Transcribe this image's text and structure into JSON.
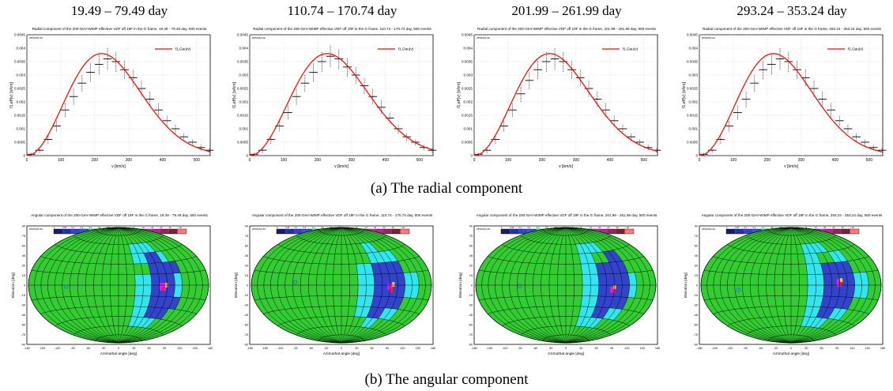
{
  "figure": {
    "radial_caption": "(a) The radial component",
    "angular_caption": "(b) The angular component"
  },
  "colors": {
    "histogram": "#000000",
    "theory_curve": "#ee1111",
    "sphere_green": "#33cc33",
    "cell_cyan": "#33e6ee",
    "cell_blue": "#3344cc",
    "cell_magenta": "#dd22dd",
    "cell_red": "#ee2222",
    "cell_yellow": "#ffcc00"
  },
  "chart_data": [
    {
      "type": "bar",
      "heading": "19.49 – 79.49 day",
      "title": "Radial component of the 200-GeV-WIMP effective VDF off 19F in the G frame, 19.49 - 79.49 day, 500 events",
      "corner_tag": "zeroxxx.zz",
      "legend": "f1,Gau(v)",
      "xlabel": "v [km/s]",
      "ylabel": "f1,eff(v) [s/km]",
      "xlim": [
        0,
        540
      ],
      "ylim": [
        0,
        0.0045
      ],
      "xticks": [
        0,
        100,
        200,
        300,
        400,
        500
      ],
      "yticks": [
        "0",
        "0.0005",
        "0.001",
        "0.0015",
        "0.002",
        "0.0025",
        "0.003",
        "0.0035",
        "0.004",
        "0.0045"
      ],
      "bin_width": 25,
      "values": [
        5e-05,
        0.0002,
        0.0006,
        0.0011,
        0.0017,
        0.0022,
        0.0027,
        0.0031,
        0.0034,
        0.0036,
        0.0035,
        0.0032,
        0.0029,
        0.0025,
        0.0021,
        0.0017,
        0.0013,
        0.001,
        0.0007,
        0.0005,
        0.0003,
        0.0002
      ],
      "errors": [
        5e-05,
        0.0001,
        0.00015,
        0.0002,
        0.00025,
        0.0003,
        0.00032,
        0.00035,
        0.00038,
        0.0004,
        0.00038,
        0.00035,
        0.00032,
        0.0003,
        0.00028,
        0.00025,
        0.0002,
        0.00018,
        0.00015,
        0.00012,
        0.0001,
        8e-05
      ],
      "curve": {
        "name": "f1,Gau(v)",
        "peak_v": 220,
        "peak_value": 0.0038
      }
    },
    {
      "type": "bar",
      "heading": "110.74 – 170.74 day",
      "title": "Radial component of the 200-GeV-WIMP effective VDF off 19F in the G frame, 110.74 - 170.74 day, 500 events",
      "corner_tag": "zeroxxx.zz",
      "legend": "f1,Gau(v)",
      "xlabel": "v [km/s]",
      "ylabel": "f1,eff(v) [s/km]",
      "xlim": [
        0,
        540
      ],
      "ylim": [
        0,
        0.0045
      ],
      "xticks": [
        0,
        100,
        200,
        300,
        400,
        500
      ],
      "yticks": [
        "0",
        "0.0005",
        "0.001",
        "0.0015",
        "0.002",
        "0.0025",
        "0.003",
        "0.0035",
        "0.004",
        "0.0045"
      ],
      "bin_width": 25,
      "values": [
        5e-05,
        0.0002,
        0.0006,
        0.0011,
        0.0016,
        0.0022,
        0.0027,
        0.0031,
        0.0035,
        0.0037,
        0.0036,
        0.0033,
        0.003,
        0.0026,
        0.0022,
        0.0018,
        0.0014,
        0.001,
        0.0007,
        0.0005,
        0.0003,
        0.0002
      ],
      "errors": [
        5e-05,
        0.0001,
        0.00015,
        0.0002,
        0.00025,
        0.0003,
        0.00032,
        0.00035,
        0.00038,
        0.0004,
        0.00038,
        0.00035,
        0.00032,
        0.0003,
        0.00028,
        0.00025,
        0.0002,
        0.00018,
        0.00015,
        0.00012,
        0.0001,
        8e-05
      ],
      "curve": {
        "name": "f1,Gau(v)",
        "peak_v": 228,
        "peak_value": 0.0038
      }
    },
    {
      "type": "bar",
      "heading": "201.99 – 261.99 day",
      "title": "Radial component of the 200-GeV-WIMP effective VDF off 19F in the G frame, 201.99 - 261.99 day, 500 events",
      "corner_tag": "zeroxxx.zz",
      "legend": "f1,Gau(v)",
      "xlabel": "v [km/s]",
      "ylabel": "f1,eff(v) [s/km]",
      "xlim": [
        0,
        540
      ],
      "ylim": [
        0,
        0.0045
      ],
      "xticks": [
        0,
        100,
        200,
        300,
        400,
        500
      ],
      "yticks": [
        "0",
        "0.0005",
        "0.001",
        "0.0015",
        "0.002",
        "0.0025",
        "0.003",
        "0.0035",
        "0.004",
        "0.0045"
      ],
      "bin_width": 25,
      "values": [
        5e-05,
        0.0002,
        0.0006,
        0.0011,
        0.0017,
        0.0023,
        0.0028,
        0.0032,
        0.0035,
        0.0036,
        0.0035,
        0.0032,
        0.0029,
        0.0025,
        0.0021,
        0.0017,
        0.0013,
        0.001,
        0.0007,
        0.0005,
        0.0003,
        0.0002
      ],
      "errors": [
        5e-05,
        0.0001,
        0.00015,
        0.0002,
        0.00025,
        0.0003,
        0.00032,
        0.00035,
        0.00038,
        0.0004,
        0.00038,
        0.00035,
        0.00032,
        0.0003,
        0.00028,
        0.00025,
        0.0002,
        0.00018,
        0.00015,
        0.00012,
        0.0001,
        8e-05
      ],
      "curve": {
        "name": "f1,Gau(v)",
        "peak_v": 222,
        "peak_value": 0.0038
      }
    },
    {
      "type": "bar",
      "heading": "293.24 – 353.24 day",
      "title": "Radial component of the 200-GeV-WIMP effective VDF off 19F in the G frame, 293.24 - 353.24 day, 500 events",
      "corner_tag": "zeroxxx.zz",
      "legend": "f1,Gau(v)",
      "xlabel": "v [km/s]",
      "ylabel": "f1,eff(v) [s/km]",
      "xlim": [
        0,
        540
      ],
      "ylim": [
        0,
        0.0045
      ],
      "xticks": [
        0,
        100,
        200,
        300,
        400,
        500
      ],
      "yticks": [
        "0",
        "0.0005",
        "0.001",
        "0.0015",
        "0.002",
        "0.0025",
        "0.003",
        "0.0035",
        "0.004",
        "0.0045"
      ],
      "bin_width": 25,
      "values": [
        5e-05,
        0.0002,
        0.0006,
        0.0011,
        0.0016,
        0.0021,
        0.0027,
        0.0032,
        0.0034,
        0.0036,
        0.0035,
        0.0032,
        0.0029,
        0.0025,
        0.0021,
        0.0017,
        0.0013,
        0.001,
        0.0007,
        0.0005,
        0.0003,
        0.0002
      ],
      "errors": [
        5e-05,
        0.0001,
        0.00015,
        0.0002,
        0.00025,
        0.0003,
        0.00032,
        0.00035,
        0.00038,
        0.0004,
        0.00038,
        0.00035,
        0.00032,
        0.0003,
        0.00028,
        0.00025,
        0.0002,
        0.00018,
        0.00015,
        0.00012,
        0.0001,
        8e-05
      ],
      "curve": {
        "name": "f1,Gau(v)",
        "peak_v": 218,
        "peak_value": 0.0038
      }
    },
    {
      "type": "heatmap",
      "title": "Angular component of the 200-GeV-WIMP effective VDF off 19F in the G frame, 19.49 - 79.49 day, 500 events",
      "corner_tag": "zeroxxx.zz",
      "projection": "hammer",
      "xlabel": "Azimuthal angle [deg]",
      "ylabel": "Elevation [deg]",
      "xlim": [
        -180,
        180
      ],
      "ylim": [
        -90,
        90
      ],
      "xticks": [
        -180,
        -150,
        -120,
        -90,
        -60,
        -30,
        0,
        30,
        60,
        90,
        120,
        150,
        180
      ],
      "yticks": [
        -90,
        -75,
        -60,
        -45,
        -30,
        -15,
        0,
        15,
        30,
        45,
        60,
        75,
        90
      ],
      "colorbar_labels": [
        "0",
        "0.05",
        "0.1",
        "0.2",
        "0.4",
        "0.6",
        "0.8",
        "1",
        "2",
        "5",
        "10",
        "15",
        "20",
        "30",
        "> 40"
      ],
      "colorbar_colors": [
        "#1a1a70",
        "#2233aa",
        "#3344cc",
        "#3355dd",
        "#33e6ee",
        "#77f0f0",
        "#bbf7f7",
        "#ffffff",
        "#ffff66",
        "#ee44ee",
        "#dd22dd",
        "#bb2299",
        "#992266",
        "#772233",
        "#ff7777"
      ],
      "cyan_cells": [
        [
          30,
          30,
          60,
          60
        ],
        [
          60,
          45,
          90,
          60
        ],
        [
          60,
          -60,
          90,
          -45
        ],
        [
          30,
          -60,
          60,
          -45
        ],
        [
          30,
          -45,
          60,
          15
        ],
        [
          90,
          30,
          105,
          45
        ],
        [
          90,
          -45,
          105,
          -30
        ],
        [
          105,
          -15,
          120,
          0
        ],
        [
          105,
          0,
          120,
          15
        ]
      ],
      "blue_cells": [
        [
          60,
          30,
          90,
          45
        ],
        [
          60,
          -45,
          105,
          -30
        ],
        [
          60,
          -30,
          120,
          -15
        ],
        [
          60,
          -15,
          105,
          30
        ],
        [
          105,
          15,
          120,
          30
        ],
        [
          90,
          30,
          105,
          30
        ]
      ],
      "hot_cells": [
        [
          75,
          -7,
          88,
          3,
          "#dd22dd"
        ],
        [
          80,
          -8,
          85,
          -2,
          "#ee2222"
        ],
        [
          86,
          -3,
          91,
          3,
          "#ffcc00"
        ]
      ],
      "markers": [
        {
          "lon": -97,
          "lat": -2,
          "color": "#2266ff"
        }
      ]
    },
    {
      "type": "heatmap",
      "title": "Angular component of the 200-GeV-WIMP effective VDF off 19F in the G frame, 110.74 - 170.74 day, 500 events",
      "corner_tag": "zeroxxx.zz",
      "projection": "hammer",
      "xlabel": "Azimuthal angle [deg]",
      "ylabel": "Elevation [deg]",
      "xlim": [
        -180,
        180
      ],
      "ylim": [
        -90,
        90
      ],
      "xticks": [
        -180,
        -150,
        -120,
        -90,
        -60,
        -30,
        0,
        30,
        60,
        90,
        120,
        150,
        180
      ],
      "yticks": [
        -90,
        -75,
        -60,
        -45,
        -30,
        -15,
        0,
        15,
        30,
        45,
        60,
        75,
        90
      ],
      "colorbar_labels": [
        "0",
        "0.05",
        "0.1",
        "0.2",
        "0.4",
        "0.6",
        "0.8",
        "1",
        "2",
        "5",
        "10",
        "15",
        "20",
        "30",
        "> 40"
      ],
      "colorbar_colors": [
        "#1a1a70",
        "#2233aa",
        "#3344cc",
        "#3355dd",
        "#33e6ee",
        "#77f0f0",
        "#bbf7f7",
        "#ffffff",
        "#ffff66",
        "#ee44ee",
        "#dd22dd",
        "#bb2299",
        "#992266",
        "#772233",
        "#ff7777"
      ],
      "cyan_cells": [
        [
          60,
          30,
          90,
          60
        ],
        [
          90,
          30,
          120,
          45
        ],
        [
          30,
          -45,
          60,
          30
        ],
        [
          60,
          -60,
          90,
          -45
        ],
        [
          90,
          -45,
          120,
          -30
        ],
        [
          120,
          -15,
          150,
          15
        ]
      ],
      "blue_cells": [
        [
          60,
          -45,
          90,
          30
        ],
        [
          90,
          -30,
          120,
          30
        ],
        [
          90,
          30,
          105,
          30
        ]
      ],
      "hot_cells": [
        [
          85,
          -6,
          95,
          2,
          "#dd22dd"
        ],
        [
          90,
          -10,
          96,
          -4,
          "#ee2222"
        ],
        [
          94,
          -2,
          99,
          4,
          "#ffcc00"
        ]
      ],
      "markers": [
        {
          "lon": -85,
          "lat": 4,
          "color": "#2266ff"
        }
      ]
    },
    {
      "type": "heatmap",
      "title": "Angular component of the 200-GeV-WIMP effective VDF off 19F in the G frame, 201.99 - 261.99 day, 500 events",
      "corner_tag": "zeroxxx.zz",
      "projection": "hammer",
      "xlabel": "Azimuthal angle [deg]",
      "ylabel": "Elevation [deg]",
      "xlim": [
        -180,
        180
      ],
      "ylim": [
        -90,
        90
      ],
      "xticks": [
        -180,
        -150,
        -120,
        -90,
        -60,
        -30,
        0,
        30,
        60,
        90,
        120,
        150,
        180
      ],
      "yticks": [
        -90,
        -75,
        -60,
        -45,
        -30,
        -15,
        0,
        15,
        30,
        45,
        60,
        75,
        90
      ],
      "colorbar_labels": [
        "0",
        "0.05",
        "0.1",
        "0.2",
        "0.4",
        "0.6",
        "0.8",
        "1",
        "2",
        "5",
        "10",
        "15",
        "20",
        "30",
        "> 40"
      ],
      "colorbar_colors": [
        "#1a1a70",
        "#2233aa",
        "#3344cc",
        "#3355dd",
        "#33e6ee",
        "#77f0f0",
        "#bbf7f7",
        "#ffffff",
        "#ffff66",
        "#ee44ee",
        "#dd22dd",
        "#bb2299",
        "#992266",
        "#772233",
        "#ff7777"
      ],
      "cyan_cells": [
        [
          30,
          30,
          60,
          60
        ],
        [
          60,
          45,
          90,
          60
        ],
        [
          30,
          -60,
          90,
          -45
        ],
        [
          30,
          -45,
          60,
          30
        ],
        [
          90,
          -45,
          120,
          -30
        ],
        [
          120,
          -15,
          135,
          15
        ]
      ],
      "blue_cells": [
        [
          60,
          -45,
          90,
          30
        ],
        [
          90,
          -30,
          120,
          30
        ],
        [
          90,
          30,
          120,
          45
        ]
      ],
      "hot_cells": [
        [
          82,
          -10,
          92,
          -2,
          "#dd22dd"
        ],
        [
          86,
          -11,
          91,
          -6,
          "#ee2222"
        ],
        [
          88,
          -5,
          93,
          0,
          "#ffcc00"
        ]
      ],
      "markers": [
        {
          "lon": -85,
          "lat": -1,
          "color": "#2266ff"
        }
      ]
    },
    {
      "type": "heatmap",
      "title": "Angular component of the 200-GeV-WIMP effective VDF off 19F in the G frame, 293.24 - 353.24 day, 500 events",
      "corner_tag": "zeroxxx.zz",
      "projection": "hammer",
      "xlabel": "Azimuthal angle [deg]",
      "ylabel": "Elevation [deg]",
      "xlim": [
        -180,
        180
      ],
      "ylim": [
        -90,
        90
      ],
      "xticks": [
        -180,
        -150,
        -120,
        -90,
        -60,
        -30,
        0,
        30,
        60,
        90,
        120,
        150,
        180
      ],
      "yticks": [
        -90,
        -75,
        -60,
        -45,
        -30,
        -15,
        0,
        15,
        30,
        45,
        60,
        75,
        90
      ],
      "colorbar_labels": [
        "0",
        "0.05",
        "0.1",
        "0.2",
        "0.4",
        "0.6",
        "0.8",
        "1",
        "2",
        "5",
        "10",
        "15",
        "20",
        "30",
        "> 40"
      ],
      "colorbar_colors": [
        "#1a1a70",
        "#2233aa",
        "#3344cc",
        "#3355dd",
        "#33e6ee",
        "#77f0f0",
        "#bbf7f7",
        "#ffffff",
        "#ffff66",
        "#ee44ee",
        "#dd22dd",
        "#bb2299",
        "#992266",
        "#772233",
        "#ff7777"
      ],
      "cyan_cells": [
        [
          30,
          30,
          60,
          60
        ],
        [
          60,
          45,
          90,
          60
        ],
        [
          90,
          30,
          120,
          45
        ],
        [
          30,
          -45,
          60,
          30
        ],
        [
          30,
          -60,
          90,
          -45
        ],
        [
          90,
          -45,
          120,
          -30
        ],
        [
          120,
          -15,
          150,
          15
        ]
      ],
      "blue_cells": [
        [
          60,
          -45,
          90,
          30
        ],
        [
          90,
          -30,
          120,
          30
        ]
      ],
      "hot_cells": [
        [
          84,
          -2,
          94,
          8,
          "#dd22dd"
        ],
        [
          88,
          0,
          94,
          6,
          "#ee2222"
        ],
        [
          91,
          4,
          96,
          9,
          "#ffcc00"
        ]
      ],
      "markers": [
        {
          "lon": -98,
          "lat": -6,
          "color": "#2266ff"
        }
      ]
    }
  ]
}
